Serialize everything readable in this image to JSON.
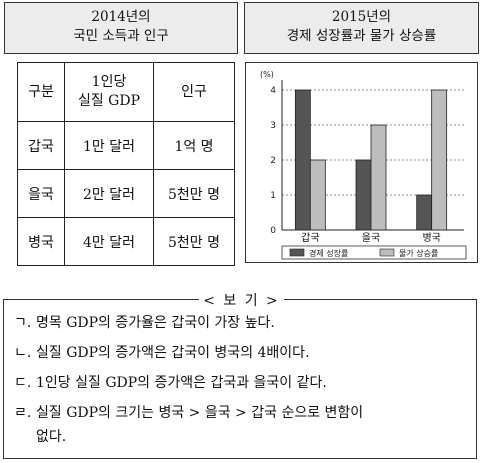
{
  "box1": {
    "line1": "2014년의",
    "line2": "국민 소득과 인구"
  },
  "box2": {
    "line1": "2015년의",
    "line2": "경제 성장률과 물가 상승률"
  },
  "table": {
    "headers": [
      "구분",
      "1인당",
      "실질 GDP",
      "인구"
    ],
    "rows": [
      {
        "country": "갑국",
        "gdp": "1만 달러",
        "pop": "1억 명"
      },
      {
        "country": "을국",
        "gdp": "2만 달러",
        "pop": "5천만 명"
      },
      {
        "country": "병국",
        "gdp": "4만 달러",
        "pop": "5천만 명"
      }
    ]
  },
  "chart_data": {
    "type": "bar",
    "ylabel": "(%)",
    "ylim": [
      0,
      4
    ],
    "yticks": [
      "0",
      "1",
      "2",
      "3",
      "4"
    ],
    "categories": [
      "갑국",
      "을국",
      "병국"
    ],
    "series": [
      {
        "name": "경제 성장률",
        "values": [
          4,
          2,
          1
        ],
        "color": "#555555"
      },
      {
        "name": "물가 상승률",
        "values": [
          2,
          3,
          4
        ],
        "color": "#bdbdbd"
      }
    ],
    "grid": true,
    "legend": "bottom"
  },
  "bogi": {
    "title": "< 보 기 >",
    "items": [
      {
        "mark": "ㄱ.",
        "text": "명목 GDP의 증가율은 갑국이 가장 높다."
      },
      {
        "mark": "ㄴ.",
        "text": "실질 GDP의 증가액은 갑국이 병국의 4배이다."
      },
      {
        "mark": "ㄷ.",
        "text": "1인당 실질 GDP의 증가액은 갑국과 을국이 같다."
      },
      {
        "mark": "ㄹ.",
        "text": "실질 GDP의 크기는 병국 > 을국 > 갑국 순으로 변함이",
        "text2": "없다."
      }
    ]
  }
}
